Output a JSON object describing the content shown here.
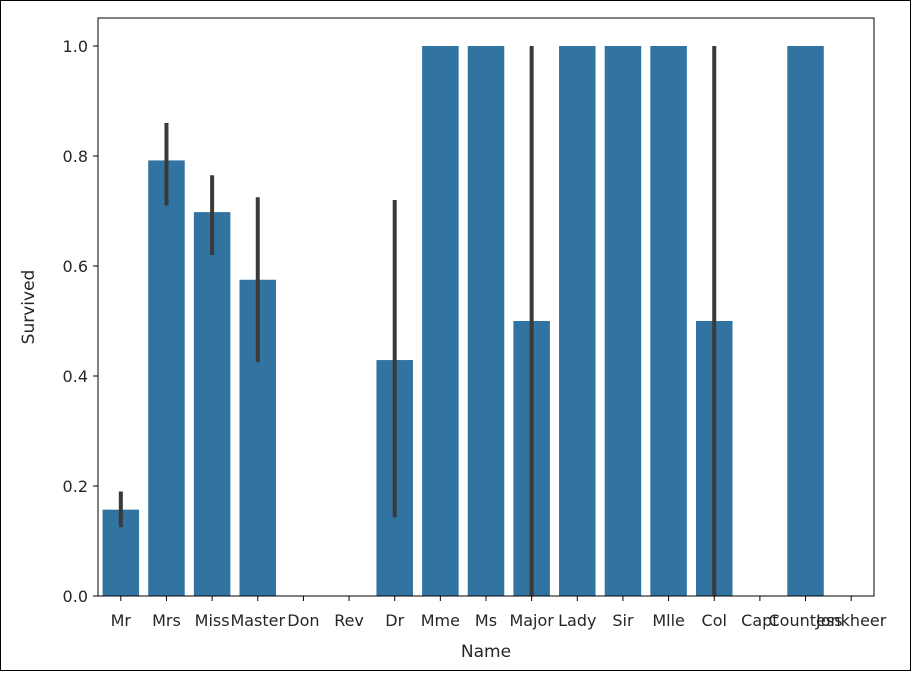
{
  "chart_data": {
    "type": "bar",
    "xlabel": "Name",
    "ylabel": "Survived",
    "ylim": [
      0,
      1.05
    ],
    "yticks": [
      "0.0",
      "0.2",
      "0.4",
      "0.6",
      "0.8",
      "1.0"
    ],
    "grid": false,
    "categories": [
      "Mr",
      "Mrs",
      "Miss",
      "Master",
      "Don",
      "Rev",
      "Dr",
      "Mme",
      "Ms",
      "Major",
      "Lady",
      "Sir",
      "Mlle",
      "Col",
      "Capt",
      "Countess",
      "Jonkheer"
    ],
    "values": [
      0.157,
      0.792,
      0.698,
      0.575,
      0.0,
      0.0,
      0.429,
      1.0,
      1.0,
      0.5,
      1.0,
      1.0,
      1.0,
      0.5,
      0.0,
      1.0,
      0.0
    ],
    "error_bars": [
      [
        0.125,
        0.19
      ],
      [
        0.71,
        0.86
      ],
      [
        0.62,
        0.765
      ],
      [
        0.425,
        0.725
      ],
      null,
      null,
      [
        0.143,
        0.72
      ],
      null,
      null,
      [
        0.0,
        1.0
      ],
      null,
      null,
      null,
      [
        0.0,
        1.0
      ],
      null,
      null,
      null
    ],
    "colors": {
      "bar": "#3274a1",
      "error_bar": "#3a3a3a",
      "axis": "#000000",
      "text": "#262626"
    }
  }
}
